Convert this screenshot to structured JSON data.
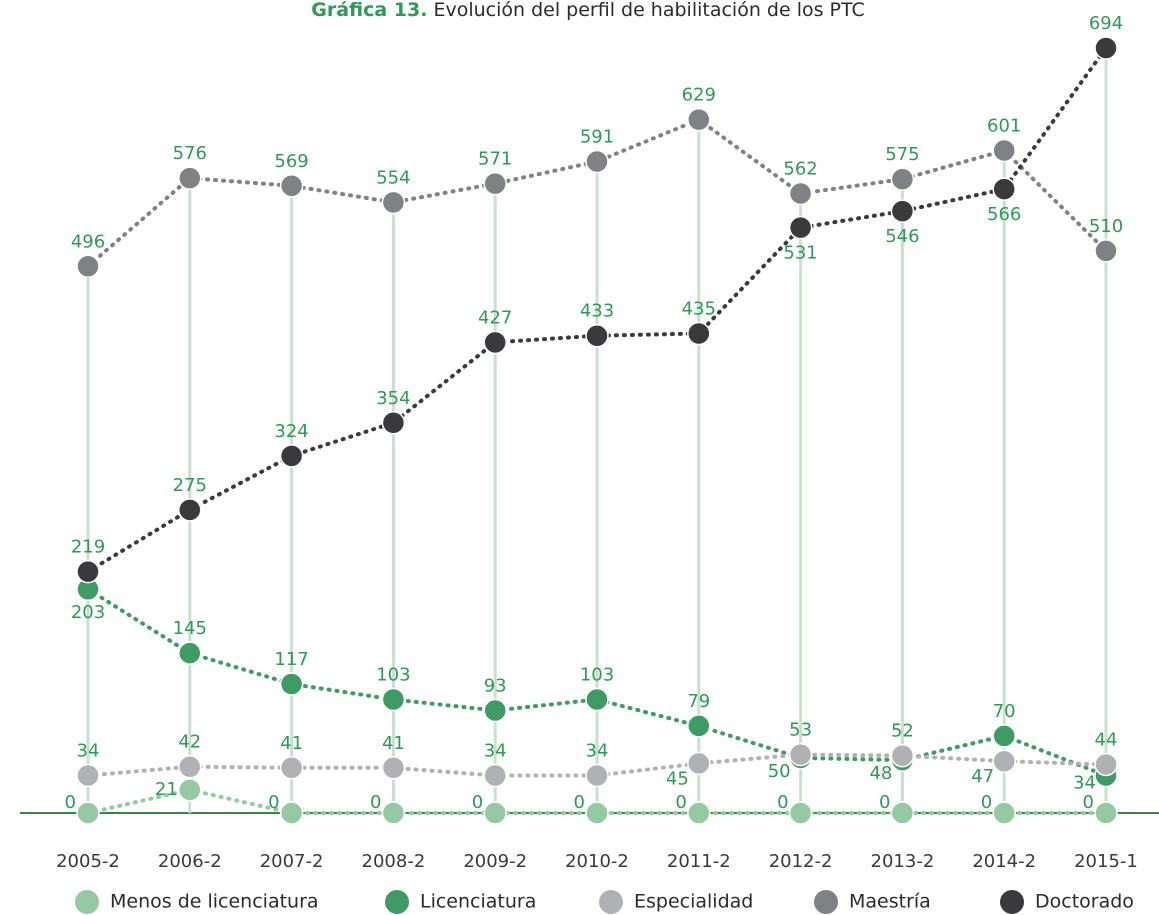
{
  "chart_data": {
    "type": "line",
    "title_label": "Gráfica 13.",
    "title": "Evolución del perfil de habilitación de los PTC",
    "categories": [
      "2005-2",
      "2006-2",
      "2007-2",
      "2008-2",
      "2009-2",
      "2010-2",
      "2011-2",
      "2012-2",
      "2013-2",
      "2014-2",
      "2015-1"
    ],
    "series": [
      {
        "name": "Menos de licenciatura",
        "color": "#95c9a3",
        "values": [
          0,
          21,
          0,
          0,
          0,
          0,
          0,
          0,
          0,
          0,
          0
        ]
      },
      {
        "name": "Licenciatura",
        "color": "#3d9b63",
        "values": [
          203,
          145,
          117,
          103,
          93,
          103,
          79,
          50,
          48,
          70,
          34
        ]
      },
      {
        "name": "Especialidad",
        "color": "#b0b1b4",
        "values": [
          34,
          42,
          41,
          41,
          34,
          34,
          45,
          53,
          52,
          47,
          44
        ]
      },
      {
        "name": "Maestría",
        "color": "#808184",
        "values": [
          496,
          576,
          569,
          554,
          571,
          591,
          629,
          562,
          575,
          601,
          510
        ]
      },
      {
        "name": "Doctorado",
        "color": "#3a3a3c",
        "values": [
          219,
          275,
          324,
          354,
          427,
          433,
          435,
          531,
          546,
          566,
          694
        ]
      }
    ],
    "ylim": [
      0,
      700
    ]
  }
}
